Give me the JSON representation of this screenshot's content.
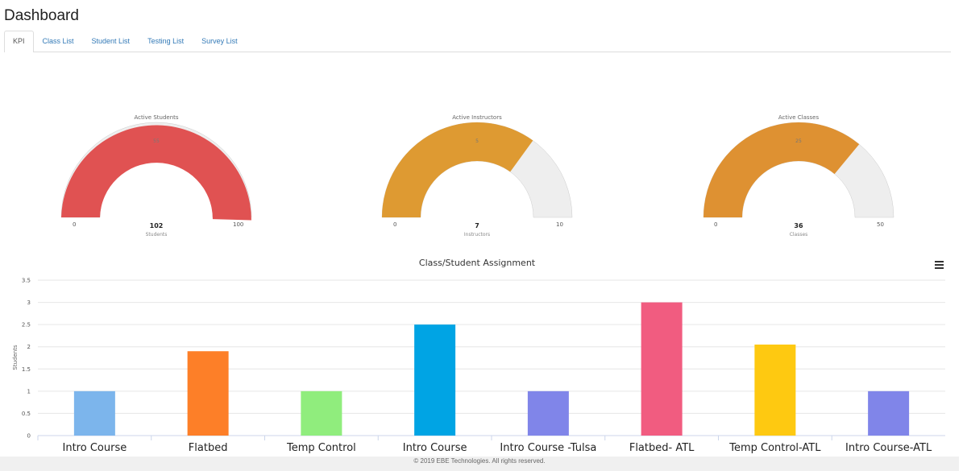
{
  "page": {
    "title": "Dashboard"
  },
  "tabs": [
    {
      "label": "KPI",
      "active": true
    },
    {
      "label": "Class List",
      "active": false
    },
    {
      "label": "Student List",
      "active": false
    },
    {
      "label": "Testing List",
      "active": false
    },
    {
      "label": "Survey List",
      "active": false
    }
  ],
  "gauges": [
    {
      "title": "Active Students",
      "value_label": "102",
      "pointer_label": "55",
      "unit": "Students",
      "min": "0",
      "max": "100",
      "value": 102,
      "range": [
        0,
        100
      ],
      "color": "#e05252"
    },
    {
      "title": "Active Instructors",
      "value_label": "7",
      "pointer_label": "5",
      "unit": "Instructors",
      "min": "0",
      "max": "10",
      "value": 7,
      "range": [
        0,
        10
      ],
      "color": "#de9a32"
    },
    {
      "title": "Active Classes",
      "value_label": "36",
      "pointer_label": "25",
      "unit": "Classes",
      "min": "0",
      "max": "50",
      "value": 36,
      "range": [
        0,
        50
      ],
      "color": "#de9132"
    }
  ],
  "chart_data": {
    "type": "bar",
    "title": "Class/Student Assignment",
    "ylabel": "Students",
    "xlabel": "",
    "ylim": [
      0,
      3.5
    ],
    "yticks": [
      "0",
      "0.5",
      "1",
      "1.5",
      "2",
      "2.5",
      "3",
      "3.5"
    ],
    "grid": true,
    "categories": [
      "Intro Course",
      "Flatbed",
      "Temp Control",
      "Intro Course",
      "Intro Course -Tulsa",
      "Flatbed- ATL",
      "Temp Control-ATL",
      "Intro Course-ATL"
    ],
    "values": [
      1,
      1.9,
      1,
      2.5,
      1,
      3,
      2.05,
      1
    ],
    "colors": [
      "#7cb5ec",
      "#fd7f28",
      "#90ed7d",
      "#00a4e4",
      "#8085e9",
      "#f15c80",
      "#fec911",
      "#8085e9"
    ]
  },
  "footer": {
    "text": "© 2019 EBE Technologies. All rights reserved."
  }
}
